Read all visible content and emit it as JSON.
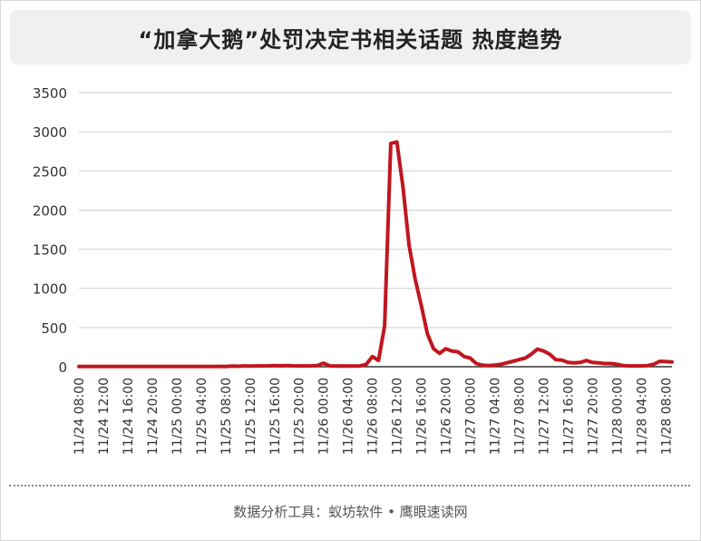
{
  "title": "“加拿大鹅”处罚决定书相关话题 热度趋势",
  "footer": "数据分析工具：蚁坊软件 • 鹰眼速读网",
  "colors": {
    "line": "#c0161e",
    "grid": "#d0d0d0",
    "axis": "#333333"
  },
  "chart_data": {
    "type": "line",
    "ylim": [
      0,
      3500
    ],
    "yticks": [
      0,
      500,
      1000,
      1500,
      2000,
      2500,
      3000,
      3500
    ],
    "grid": true,
    "xticks": [
      {
        "index": 0,
        "label": "11/24 08:00"
      },
      {
        "index": 4,
        "label": "11/24 12:00"
      },
      {
        "index": 8,
        "label": "11/24 16:00"
      },
      {
        "index": 12,
        "label": "11/24 20:00"
      },
      {
        "index": 16,
        "label": "11/25 00:00"
      },
      {
        "index": 20,
        "label": "11/25 04:00"
      },
      {
        "index": 24,
        "label": "11/25 08:00"
      },
      {
        "index": 28,
        "label": "11/25 12:00"
      },
      {
        "index": 32,
        "label": "11/25 16:00"
      },
      {
        "index": 36,
        "label": "11/25 20:00"
      },
      {
        "index": 40,
        "label": "11/26 00:00"
      },
      {
        "index": 44,
        "label": "11/26 04:00"
      },
      {
        "index": 48,
        "label": "11/26 08:00"
      },
      {
        "index": 52,
        "label": "11/26 12:00"
      },
      {
        "index": 56,
        "label": "11/26 16:00"
      },
      {
        "index": 60,
        "label": "11/26 20:00"
      },
      {
        "index": 64,
        "label": "11/27 00:00"
      },
      {
        "index": 68,
        "label": "11/27 04:00"
      },
      {
        "index": 72,
        "label": "11/27 08:00"
      },
      {
        "index": 76,
        "label": "11/27 12:00"
      },
      {
        "index": 80,
        "label": "11/27 16:00"
      },
      {
        "index": 84,
        "label": "11/27 20:00"
      },
      {
        "index": 88,
        "label": "11/28 00:00"
      },
      {
        "index": 92,
        "label": "11/28 04:00"
      },
      {
        "index": 96,
        "label": "11/28 08:00"
      }
    ],
    "series": [
      {
        "values": [
          2,
          2,
          2,
          2,
          2,
          2,
          2,
          2,
          2,
          2,
          2,
          2,
          2,
          2,
          3,
          2,
          3,
          2,
          2,
          2,
          2,
          3,
          3,
          5,
          3,
          8,
          6,
          10,
          8,
          10,
          10,
          12,
          15,
          12,
          15,
          12,
          10,
          10,
          12,
          15,
          45,
          12,
          8,
          10,
          8,
          8,
          10,
          30,
          130,
          80,
          520,
          2850,
          2870,
          2300,
          1550,
          1120,
          780,
          420,
          230,
          170,
          230,
          200,
          190,
          130,
          110,
          40,
          20,
          15,
          20,
          30,
          50,
          70,
          90,
          110,
          160,
          225,
          200,
          160,
          90,
          85,
          55,
          50,
          55,
          80,
          55,
          50,
          40,
          40,
          30,
          15,
          10,
          10,
          10,
          15,
          30,
          70,
          65,
          60
        ]
      }
    ]
  }
}
